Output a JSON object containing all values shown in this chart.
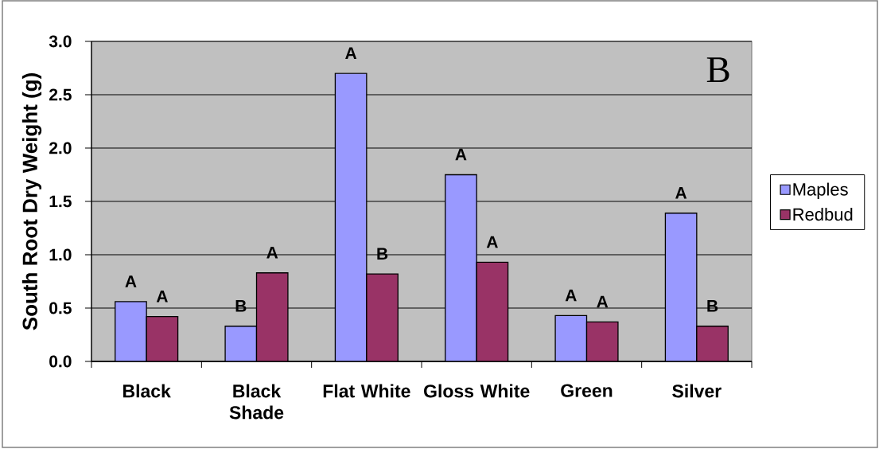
{
  "chart_data": {
    "type": "bar",
    "ylabel": "South Root Dry Weight (g)",
    "categories": [
      "Black",
      "Black Shade",
      "Flat White",
      "Gloss White",
      "Green",
      "Silver"
    ],
    "series": [
      {
        "name": "Maples",
        "color": "#9999ff",
        "values": [
          0.56,
          0.33,
          2.7,
          1.75,
          0.43,
          1.39
        ],
        "value_labels": [
          "A",
          "B",
          "A",
          "A",
          "A",
          "A"
        ]
      },
      {
        "name": "Redbud",
        "color": "#993366",
        "values": [
          0.42,
          0.83,
          0.82,
          0.93,
          0.37,
          0.33
        ],
        "value_labels": [
          "A",
          "A",
          "B",
          "A",
          "A",
          "B"
        ]
      }
    ],
    "ylim": [
      0,
      3
    ],
    "yticks": [
      {
        "value": 0,
        "label": "0.0"
      },
      0.5,
      {
        "value": 1,
        "label": "1.0"
      },
      1.5,
      {
        "value": 2,
        "label": "2.0"
      },
      2.5,
      {
        "value": 3,
        "label": "3.0"
      }
    ],
    "grid": "y",
    "legend": "right",
    "annotations": [
      "B"
    ]
  }
}
